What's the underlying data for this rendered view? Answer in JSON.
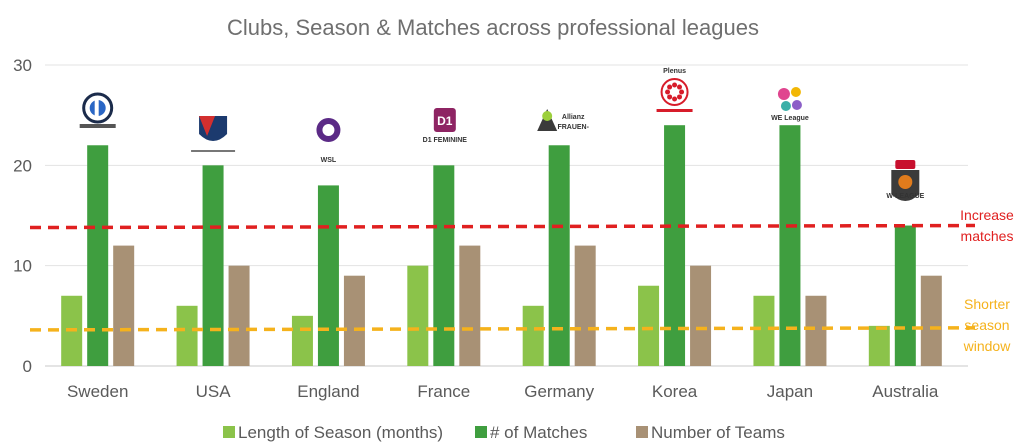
{
  "chart_data": {
    "type": "bar",
    "title": "Clubs, Season & Matches across professional leagues",
    "categories": [
      "Sweden",
      "USA",
      "England",
      "France",
      "Germany",
      "Korea",
      "Japan",
      "Australia"
    ],
    "series": [
      {
        "name": "Length of Season (months)",
        "values": [
          7,
          6,
          5,
          10,
          6,
          8,
          7,
          4
        ],
        "color": "#8bc34a"
      },
      {
        "name": "# of Matches",
        "values": [
          22,
          20,
          18,
          20,
          22,
          24,
          24,
          14
        ],
        "color": "#3f9e3f"
      },
      {
        "name": "Number of Teams",
        "values": [
          12,
          10,
          9,
          12,
          12,
          10,
          7,
          9
        ],
        "color": "#a89175"
      }
    ],
    "ylim": [
      0,
      30
    ],
    "yticks": [
      0,
      10,
      20,
      30
    ],
    "grid": true,
    "legend": "bottom",
    "reference_lines": [
      {
        "value": 13.8,
        "color": "#e02020",
        "label": [
          "Increase",
          "matches"
        ]
      },
      {
        "value": 3.6,
        "color": "#f5b21c",
        "label": [
          "Shorter",
          "season",
          "window"
        ]
      }
    ]
  },
  "logos": [
    {
      "name": "damallsvenskan-logo",
      "text": "DAMALLSVENSKAN"
    },
    {
      "name": "nwsl-logo",
      "text": "NWSL"
    },
    {
      "name": "fa-wsl-logo",
      "text": "WSL"
    },
    {
      "name": "d1-feminine-logo",
      "text": "D1 FEMININE"
    },
    {
      "name": "frauen-bundesliga-logo",
      "text": "Allianz FRAUEN-BUNDESLIGA"
    },
    {
      "name": "nadeshiko-league-logo",
      "text": "Plenus"
    },
    {
      "name": "we-league-logo",
      "text": "WE League"
    },
    {
      "name": "w-league-logo",
      "text": "W-LEAGUE"
    }
  ]
}
